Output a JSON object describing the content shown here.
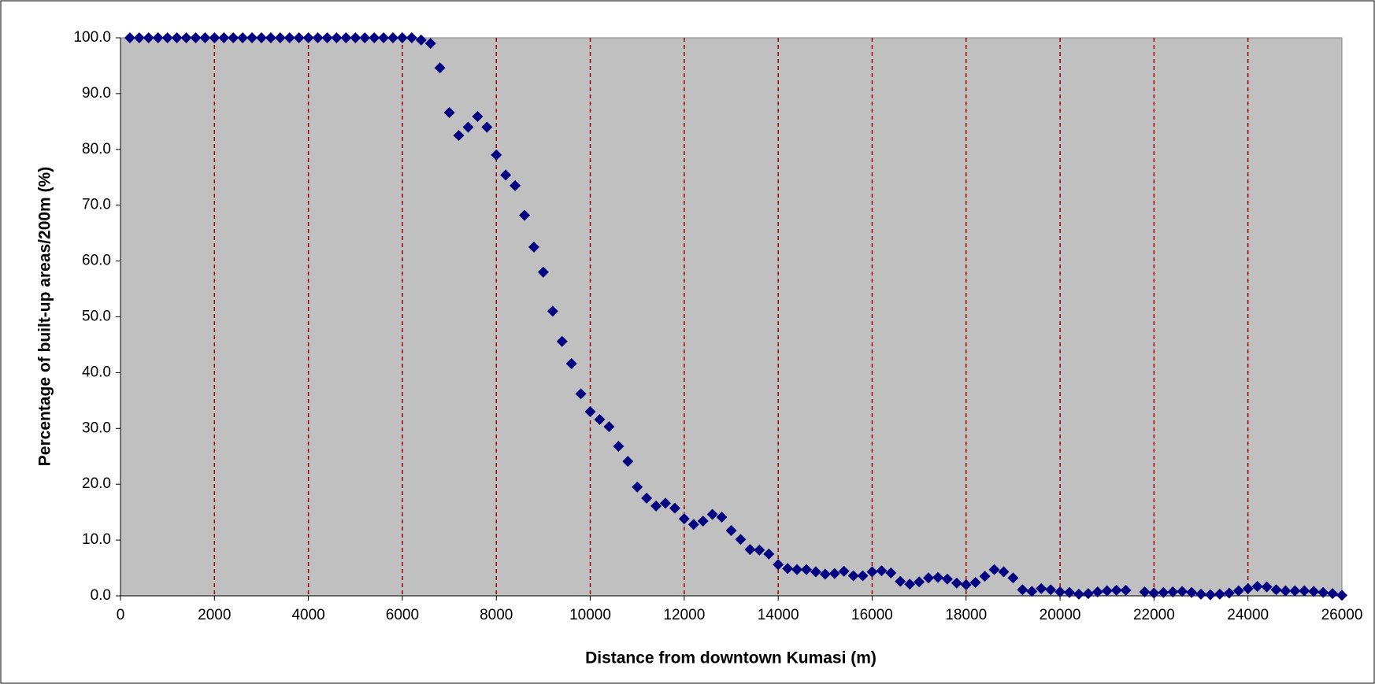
{
  "chart_data": {
    "type": "scatter",
    "x_label": "Distance from downtown Kumasi (m)",
    "y_label": "Percentage of built-up areas/200m (%)",
    "color": "#000080",
    "plot_background": "#c0c0c0",
    "grid_color": "#a00000",
    "grid": true,
    "xlim": [
      0,
      26000
    ],
    "ylim": [
      0,
      100
    ],
    "xticks": [
      0,
      2000,
      4000,
      6000,
      8000,
      10000,
      12000,
      14000,
      16000,
      18000,
      20000,
      22000,
      24000,
      26000
    ],
    "yticks": [
      {
        "value": 0,
        "label": "0.0"
      },
      {
        "value": 10,
        "label": "10.0"
      },
      {
        "value": 20,
        "label": "20.0"
      },
      {
        "value": 30,
        "label": "30.0"
      },
      {
        "value": 40,
        "label": "40.0"
      },
      {
        "value": 50,
        "label": "50.0"
      },
      {
        "value": 60,
        "label": "60.0"
      },
      {
        "value": 70,
        "label": "70.0"
      },
      {
        "value": 80,
        "label": "80.0"
      },
      {
        "value": 90,
        "label": "90.0"
      },
      {
        "value": 100,
        "label": "100.0"
      }
    ],
    "x": [
      200,
      400,
      600,
      800,
      1000,
      1200,
      1400,
      1600,
      1800,
      2000,
      2200,
      2400,
      2600,
      2800,
      3000,
      3200,
      3400,
      3600,
      3800,
      4000,
      4200,
      4400,
      4600,
      4800,
      5000,
      5200,
      5400,
      5600,
      5800,
      6000,
      6200,
      6400,
      6600,
      6800,
      7000,
      7200,
      7400,
      7600,
      7800,
      8000,
      8200,
      8400,
      8600,
      8800,
      9000,
      9200,
      9400,
      9600,
      9800,
      10000,
      10200,
      10400,
      10600,
      10800,
      11000,
      11200,
      11400,
      11600,
      11800,
      12000,
      12200,
      12400,
      12600,
      12800,
      13000,
      13200,
      13400,
      13600,
      13800,
      14000,
      14200,
      14400,
      14600,
      14800,
      15000,
      15200,
      15400,
      15600,
      15800,
      16000,
      16200,
      16400,
      16600,
      16800,
      17000,
      17200,
      17400,
      17600,
      17800,
      18000,
      18200,
      18400,
      18600,
      18800,
      19000,
      19200,
      19400,
      19600,
      19800,
      20000,
      20200,
      20400,
      20600,
      20800,
      21000,
      21200,
      21400,
      21800,
      22000,
      22200,
      22400,
      22600,
      22800,
      23000,
      23200,
      23400,
      23600,
      23800,
      24000,
      24200,
      24400,
      24600,
      24800,
      25000,
      25200,
      25400,
      25600,
      25800,
      26000
    ],
    "values": [
      100,
      100,
      100,
      100,
      100,
      100,
      100,
      100,
      100,
      100,
      100,
      100,
      100,
      100,
      100,
      100,
      100,
      100,
      100,
      100,
      100,
      100,
      100,
      100,
      100,
      100,
      100,
      100,
      100,
      100,
      100,
      99.6,
      99.0,
      94.6,
      86.6,
      82.5,
      84.0,
      85.9,
      84.0,
      79.0,
      75.4,
      73.5,
      68.2,
      62.5,
      58.0,
      51.0,
      45.6,
      41.6,
      36.2,
      33.0,
      31.6,
      30.3,
      26.8,
      24.1,
      19.5,
      17.5,
      16.1,
      16.6,
      15.7,
      13.8,
      12.8,
      13.4,
      14.6,
      14.1,
      11.7,
      10.1,
      8.3,
      8.2,
      7.5,
      5.6,
      4.9,
      4.7,
      4.7,
      4.3,
      3.9,
      4.0,
      4.4,
      3.6,
      3.6,
      4.3,
      4.5,
      4.1,
      2.6,
      2.1,
      2.5,
      3.2,
      3.3,
      3.0,
      2.3,
      2.0,
      2.4,
      3.5,
      4.7,
      4.3,
      3.2,
      1.1,
      0.8,
      1.3,
      1.1,
      0.7,
      0.6,
      0.3,
      0.4,
      0.7,
      0.9,
      1.0,
      1.0,
      0.7,
      0.5,
      0.6,
      0.7,
      0.8,
      0.6,
      0.3,
      0.2,
      0.3,
      0.5,
      0.9,
      1.3,
      1.7,
      1.6,
      1.1,
      0.9,
      0.9,
      0.9,
      0.8,
      0.6,
      0.4,
      0.1
    ]
  }
}
